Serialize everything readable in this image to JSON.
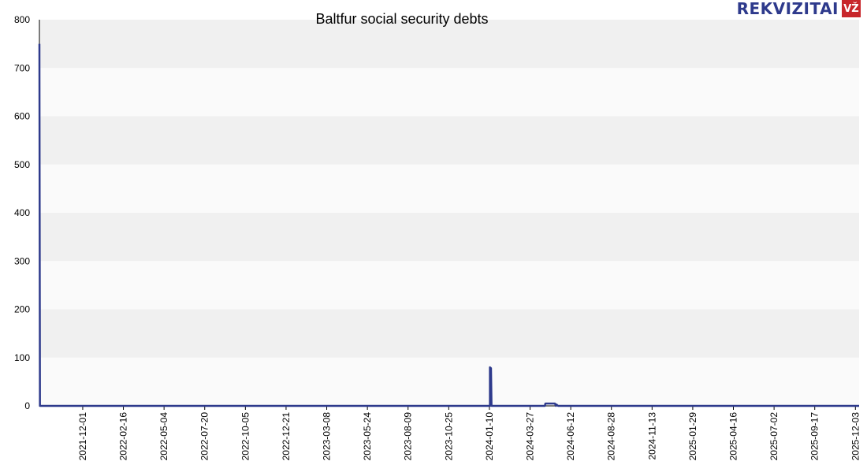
{
  "logo": {
    "text": "REKVIZITAI",
    "badge": "VŽ"
  },
  "chart_data": {
    "type": "line",
    "title": "Baltfur social security debts",
    "xlabel": "",
    "ylabel": "",
    "ylim": [
      0,
      800
    ],
    "yticks": [
      "0",
      "100",
      "200",
      "300",
      "400",
      "500",
      "600",
      "700",
      "800"
    ],
    "xlim": [
      "2021-09-10",
      "2025-12-10"
    ],
    "xticks": [
      "2021-12-01",
      "2022-02-16",
      "2022-05-04",
      "2022-07-20",
      "2022-10-05",
      "2022-12-21",
      "2023-03-08",
      "2023-05-24",
      "2023-08-09",
      "2023-10-25",
      "2024-01-10",
      "2024-03-27",
      "2024-06-12",
      "2024-08-28",
      "2024-11-13",
      "2025-01-29",
      "2025-04-16",
      "2025-07-02",
      "2025-09-17",
      "2025-12-03"
    ],
    "grid": true,
    "line_color": "#2e3a8c",
    "band_colors": [
      "#f0f0f0",
      "#fafafa"
    ],
    "series": [
      {
        "points": [
          [
            "2021-09-10",
            750
          ],
          [
            "2021-09-11",
            0
          ],
          [
            "2021-12-01",
            0
          ],
          [
            "2022-02-16",
            0
          ],
          [
            "2024-01-11",
            0
          ],
          [
            "2024-01-11",
            80
          ],
          [
            "2024-01-13",
            78
          ],
          [
            "2024-01-14",
            0
          ],
          [
            "2024-04-24",
            0
          ],
          [
            "2024-04-25",
            5
          ],
          [
            "2024-05-13",
            5
          ],
          [
            "2024-05-15",
            0
          ],
          [
            "2024-05-16",
            3
          ],
          [
            "2024-05-19",
            0
          ],
          [
            "2025-12-10",
            0
          ]
        ]
      }
    ]
  }
}
